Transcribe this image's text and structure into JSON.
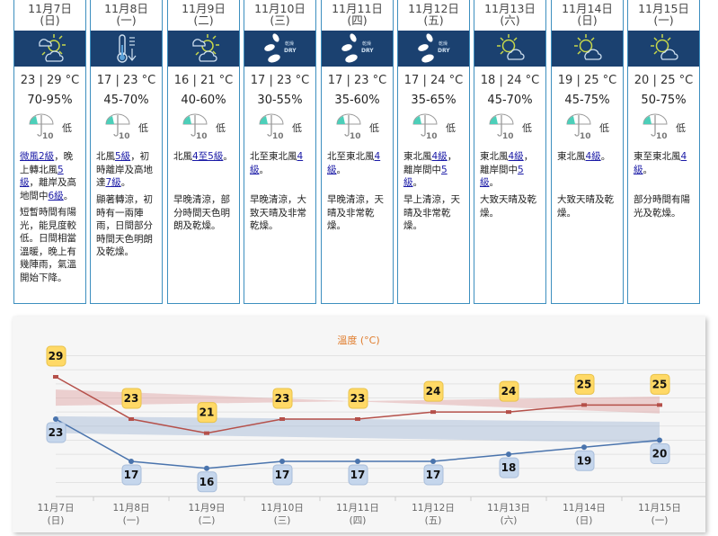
{
  "days": [
    {
      "date": "11月7日",
      "dow": "(日)",
      "icon": "sun-cloud-icon",
      "temp": "23 | 29 °C",
      "rh": "70-95%",
      "psr": "低",
      "wind": [
        {
          "t": "微風2級",
          "link": true
        },
        {
          "t": "，晚上轉北風"
        },
        {
          "t": "5級",
          "link": true
        },
        {
          "t": "，離岸及高地間中"
        },
        {
          "t": "6級",
          "link": true
        },
        {
          "t": "。"
        }
      ],
      "desc": "短暫時間有陽光，能見度較低。日間相當溫暖，晚上有幾陣雨，氣溫開始下降。"
    },
    {
      "date": "11月8日",
      "dow": "(一)",
      "icon": "temperature-drop-icon",
      "temp": "17 | 23 °C",
      "rh": "45-70%",
      "psr": "低",
      "wind": [
        {
          "t": "北風"
        },
        {
          "t": "5級",
          "link": true
        },
        {
          "t": "，初時離岸及高地達"
        },
        {
          "t": "7級",
          "link": true
        },
        {
          "t": "。"
        }
      ],
      "desc": "顯著轉涼，初時有一兩陣雨，日間部分時間天色明朗及乾燥。"
    },
    {
      "date": "11月9日",
      "dow": "(二)",
      "icon": "sun-cloud-icon",
      "temp": "16 | 21 °C",
      "rh": "40-60%",
      "psr": "低",
      "wind": [
        {
          "t": "北風"
        },
        {
          "t": "4至5級",
          "link": true
        },
        {
          "t": "。"
        }
      ],
      "desc": "早晚清涼，部分時間天色明朗及乾燥。"
    },
    {
      "date": "11月10日",
      "dow": "(三)",
      "icon": "dry-icon",
      "temp": "17 | 23 °C",
      "rh": "30-55%",
      "psr": "低",
      "wind": [
        {
          "t": "北至東北風"
        },
        {
          "t": "4級",
          "link": true
        },
        {
          "t": "。"
        }
      ],
      "desc": "早晚清涼，大致天晴及非常乾燥。"
    },
    {
      "date": "11月11日",
      "dow": "(四)",
      "icon": "dry-icon",
      "temp": "17 | 23 °C",
      "rh": "35-60%",
      "psr": "低",
      "wind": [
        {
          "t": "北至東北風"
        },
        {
          "t": "4級",
          "link": true
        },
        {
          "t": "。"
        }
      ],
      "desc": "早晚清涼，天晴及非常乾燥。"
    },
    {
      "date": "11月12日",
      "dow": "(五)",
      "icon": "dry-icon",
      "temp": "17 | 24 °C",
      "rh": "35-65%",
      "psr": "低",
      "wind": [
        {
          "t": "東北風"
        },
        {
          "t": "4級",
          "link": true
        },
        {
          "t": "，離岸間中"
        },
        {
          "t": "5級",
          "link": true
        },
        {
          "t": "。"
        }
      ],
      "desc": "早上清涼，天晴及非常乾燥。"
    },
    {
      "date": "11月13日",
      "dow": "(六)",
      "icon": "sunny-periods-icon",
      "temp": "18 | 24 °C",
      "rh": "45-70%",
      "psr": "低",
      "wind": [
        {
          "t": "東北風"
        },
        {
          "t": "4級",
          "link": true
        },
        {
          "t": "，離岸間中"
        },
        {
          "t": "5級",
          "link": true
        },
        {
          "t": "。"
        }
      ],
      "desc": "大致天晴及乾燥。"
    },
    {
      "date": "11月14日",
      "dow": "(日)",
      "icon": "sunny-periods-icon",
      "temp": "19 | 25 °C",
      "rh": "45-75%",
      "psr": "低",
      "wind": [
        {
          "t": "東北風"
        },
        {
          "t": "4級",
          "link": true
        },
        {
          "t": "。"
        }
      ],
      "desc": "大致天晴及乾燥。"
    },
    {
      "date": "11月15日",
      "dow": "(一)",
      "icon": "sunny-periods-icon",
      "temp": "20 | 25 °C",
      "rh": "50-75%",
      "psr": "低",
      "wind": [
        {
          "t": "東至東北風"
        },
        {
          "t": "4級",
          "link": true
        },
        {
          "t": "。"
        }
      ],
      "desc": "部分時間有陽光及乾燥。"
    }
  ],
  "dry_label": "乾燥",
  "dry_label_en": "DRY",
  "psr_number": "10",
  "chart_data": {
    "type": "line",
    "title": "溫度 (°C)",
    "categories": [
      "11月7日\n(日)",
      "11月8日\n(一)",
      "11月9日\n(二)",
      "11月10日\n(三)",
      "11月11日\n(四)",
      "11月12日\n(五)",
      "11月13日\n(六)",
      "11月14日\n(日)",
      "11月15日\n(一)"
    ],
    "series": [
      {
        "values": [
          29,
          23,
          21,
          23,
          23,
          24,
          24,
          25,
          25
        ],
        "color": "#b5504a",
        "label_color": "#ffd966"
      },
      {
        "values": [
          23,
          17,
          16,
          17,
          17,
          17,
          18,
          19,
          20
        ],
        "color": "#4a74ad",
        "label_color": "#c5d6ec"
      }
    ],
    "normal_max_band": {
      "from": [
        24.9,
        26.2
      ],
      "to": [
        27.2,
        23.8
      ]
    },
    "normal_min_band": {
      "from": [
        21,
        19.6
      ],
      "to": [
        23.4,
        22.6
      ]
    },
    "ylim": [
      12,
      32
    ],
    "grid": true
  },
  "colors": {
    "icon_band": "#1b4170",
    "border": "#3d8fbf",
    "link": "#1a1aa6"
  }
}
